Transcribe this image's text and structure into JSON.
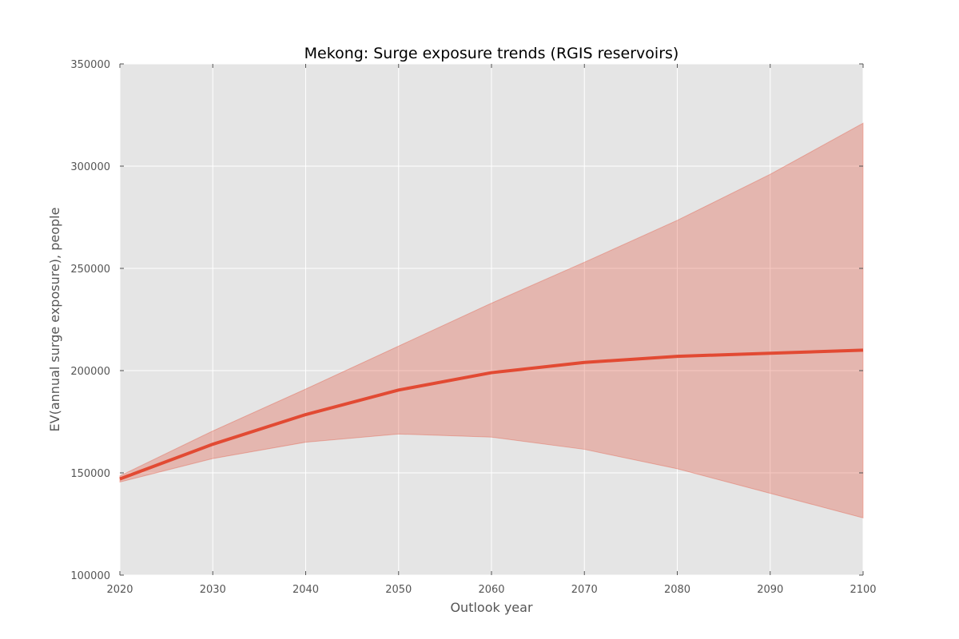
{
  "chart_data": {
    "type": "line",
    "title": "Mekong: Surge exposure trends (RGIS reservoirs)",
    "xlabel": "Outlook year",
    "ylabel": "EV(annual surge exposure), people",
    "xlim": [
      2020,
      2100
    ],
    "ylim": [
      100000,
      350000
    ],
    "xticks": [
      2020,
      2030,
      2040,
      2050,
      2060,
      2070,
      2080,
      2090,
      2100
    ],
    "yticks": [
      100000,
      150000,
      200000,
      250000,
      300000,
      350000
    ],
    "xtick_labels": [
      "2020",
      "2030",
      "2040",
      "2050",
      "2060",
      "2070",
      "2080",
      "2090",
      "2100"
    ],
    "ytick_labels": [
      "100000",
      "150000",
      "200000",
      "250000",
      "300000",
      "350000"
    ],
    "grid": true,
    "legend": "none",
    "x": [
      2020,
      2030,
      2040,
      2050,
      2060,
      2070,
      2080,
      2090,
      2100
    ],
    "series": [
      {
        "values": [
          147000,
          164000,
          178500,
          190500,
          199000,
          204000,
          207000,
          208500,
          210000
        ],
        "lower": [
          145500,
          157000,
          165000,
          169000,
          167500,
          161500,
          152000,
          140000,
          128000
        ],
        "upper": [
          148500,
          170500,
          191000,
          212000,
          233000,
          253000,
          273500,
          296000,
          321000
        ],
        "color": "#e24a33",
        "band_color": "#e24a33"
      }
    ],
    "background_color": "#e5e5e5",
    "grid_color": "#ffffff"
  }
}
